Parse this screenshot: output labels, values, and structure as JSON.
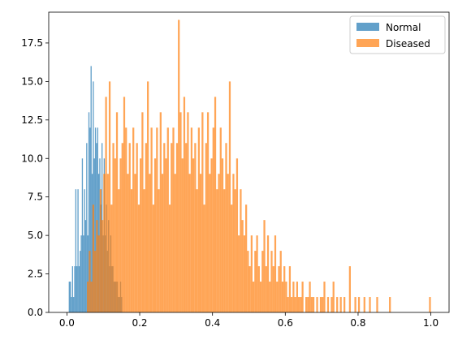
{
  "chart_data": {
    "type": "bar",
    "title": "",
    "xlabel": "",
    "ylabel": "",
    "xlim": [
      -0.05,
      1.05
    ],
    "ylim": [
      0,
      19.5
    ],
    "grid": false,
    "legend_placement": "top-right",
    "x_ticks": [
      0.0,
      0.2,
      0.4,
      0.6,
      0.8,
      1.0
    ],
    "x_tick_labels": [
      "0.0",
      "0.2",
      "0.4",
      "0.6",
      "0.8",
      "1.0"
    ],
    "y_ticks": [
      0.0,
      2.5,
      5.0,
      7.5,
      10.0,
      12.5,
      15.0,
      17.5
    ],
    "y_tick_labels": [
      "0.0",
      "2.5",
      "5.0",
      "7.5",
      "10.0",
      "12.5",
      "15.0",
      "17.5"
    ],
    "series": [
      {
        "name": "Normal",
        "color": "#1f77b4",
        "opacity": 0.7,
        "bins": [
          [
            0.005,
            0.008,
            2
          ],
          [
            0.008,
            0.011,
            2
          ],
          [
            0.011,
            0.014,
            1
          ],
          [
            0.014,
            0.017,
            3
          ],
          [
            0.017,
            0.02,
            1
          ],
          [
            0.02,
            0.023,
            3
          ],
          [
            0.023,
            0.026,
            8
          ],
          [
            0.026,
            0.029,
            3
          ],
          [
            0.029,
            0.032,
            8
          ],
          [
            0.032,
            0.035,
            3
          ],
          [
            0.035,
            0.038,
            4
          ],
          [
            0.038,
            0.041,
            5
          ],
          [
            0.041,
            0.044,
            10
          ],
          [
            0.044,
            0.047,
            5
          ],
          [
            0.047,
            0.05,
            8
          ],
          [
            0.05,
            0.053,
            6
          ],
          [
            0.053,
            0.056,
            11
          ],
          [
            0.056,
            0.059,
            5
          ],
          [
            0.059,
            0.062,
            13
          ],
          [
            0.062,
            0.065,
            12
          ],
          [
            0.065,
            0.068,
            16
          ],
          [
            0.068,
            0.071,
            9
          ],
          [
            0.071,
            0.074,
            15
          ],
          [
            0.074,
            0.077,
            10
          ],
          [
            0.077,
            0.08,
            12
          ],
          [
            0.08,
            0.083,
            11
          ],
          [
            0.083,
            0.086,
            12
          ],
          [
            0.086,
            0.089,
            9
          ],
          [
            0.089,
            0.092,
            10
          ],
          [
            0.092,
            0.095,
            7
          ],
          [
            0.095,
            0.098,
            11
          ],
          [
            0.098,
            0.101,
            5
          ],
          [
            0.101,
            0.104,
            10
          ],
          [
            0.104,
            0.107,
            5
          ],
          [
            0.107,
            0.11,
            7
          ],
          [
            0.11,
            0.113,
            4
          ],
          [
            0.113,
            0.116,
            6
          ],
          [
            0.116,
            0.119,
            3
          ],
          [
            0.119,
            0.122,
            5
          ],
          [
            0.122,
            0.125,
            3
          ],
          [
            0.125,
            0.128,
            3
          ],
          [
            0.128,
            0.131,
            2
          ],
          [
            0.131,
            0.134,
            2
          ],
          [
            0.134,
            0.137,
            2
          ],
          [
            0.137,
            0.14,
            2
          ],
          [
            0.14,
            0.143,
            1
          ],
          [
            0.143,
            0.146,
            1
          ],
          [
            0.146,
            0.149,
            2
          ],
          [
            0.149,
            0.152,
            1
          ]
        ]
      },
      {
        "name": "Diseased",
        "color": "#ff7f0e",
        "opacity": 0.7,
        "bins": [
          [
            0.055,
            0.06,
            2
          ],
          [
            0.06,
            0.065,
            4
          ],
          [
            0.065,
            0.07,
            2
          ],
          [
            0.07,
            0.075,
            7
          ],
          [
            0.075,
            0.08,
            4
          ],
          [
            0.08,
            0.085,
            6
          ],
          [
            0.085,
            0.09,
            5
          ],
          [
            0.09,
            0.095,
            8
          ],
          [
            0.095,
            0.1,
            6
          ],
          [
            0.1,
            0.105,
            9
          ],
          [
            0.105,
            0.11,
            14
          ],
          [
            0.11,
            0.115,
            9
          ],
          [
            0.115,
            0.12,
            15
          ],
          [
            0.12,
            0.125,
            7
          ],
          [
            0.125,
            0.13,
            11
          ],
          [
            0.13,
            0.135,
            10
          ],
          [
            0.135,
            0.14,
            13
          ],
          [
            0.14,
            0.145,
            8
          ],
          [
            0.145,
            0.15,
            10
          ],
          [
            0.15,
            0.155,
            11
          ],
          [
            0.155,
            0.16,
            14
          ],
          [
            0.16,
            0.165,
            12
          ],
          [
            0.165,
            0.17,
            9
          ],
          [
            0.17,
            0.175,
            11
          ],
          [
            0.175,
            0.18,
            8
          ],
          [
            0.18,
            0.185,
            12
          ],
          [
            0.185,
            0.19,
            9
          ],
          [
            0.19,
            0.195,
            11
          ],
          [
            0.195,
            0.2,
            7
          ],
          [
            0.2,
            0.205,
            10
          ],
          [
            0.205,
            0.21,
            13
          ],
          [
            0.21,
            0.215,
            8
          ],
          [
            0.215,
            0.22,
            11
          ],
          [
            0.22,
            0.225,
            15
          ],
          [
            0.225,
            0.23,
            9
          ],
          [
            0.23,
            0.235,
            12
          ],
          [
            0.235,
            0.24,
            7
          ],
          [
            0.24,
            0.245,
            10
          ],
          [
            0.245,
            0.25,
            12
          ],
          [
            0.25,
            0.255,
            8
          ],
          [
            0.255,
            0.26,
            13
          ],
          [
            0.26,
            0.265,
            9
          ],
          [
            0.265,
            0.27,
            11
          ],
          [
            0.27,
            0.275,
            10
          ],
          [
            0.275,
            0.28,
            12
          ],
          [
            0.28,
            0.285,
            7
          ],
          [
            0.285,
            0.29,
            11
          ],
          [
            0.29,
            0.295,
            12
          ],
          [
            0.295,
            0.3,
            9
          ],
          [
            0.3,
            0.305,
            11
          ],
          [
            0.305,
            0.31,
            19
          ],
          [
            0.31,
            0.315,
            13
          ],
          [
            0.315,
            0.32,
            10
          ],
          [
            0.32,
            0.325,
            14
          ],
          [
            0.325,
            0.33,
            11
          ],
          [
            0.33,
            0.335,
            13
          ],
          [
            0.335,
            0.34,
            9
          ],
          [
            0.34,
            0.345,
            12
          ],
          [
            0.345,
            0.35,
            10
          ],
          [
            0.35,
            0.355,
            11
          ],
          [
            0.355,
            0.36,
            8
          ],
          [
            0.36,
            0.365,
            12
          ],
          [
            0.365,
            0.37,
            9
          ],
          [
            0.37,
            0.375,
            13
          ],
          [
            0.375,
            0.38,
            7
          ],
          [
            0.38,
            0.385,
            11
          ],
          [
            0.385,
            0.39,
            13
          ],
          [
            0.39,
            0.395,
            9
          ],
          [
            0.395,
            0.4,
            10
          ],
          [
            0.4,
            0.405,
            12
          ],
          [
            0.405,
            0.41,
            14
          ],
          [
            0.41,
            0.415,
            8
          ],
          [
            0.415,
            0.42,
            9
          ],
          [
            0.42,
            0.425,
            12
          ],
          [
            0.425,
            0.43,
            10
          ],
          [
            0.43,
            0.435,
            8
          ],
          [
            0.435,
            0.44,
            11
          ],
          [
            0.44,
            0.445,
            9
          ],
          [
            0.445,
            0.45,
            15
          ],
          [
            0.45,
            0.455,
            7
          ],
          [
            0.455,
            0.46,
            9
          ],
          [
            0.46,
            0.465,
            8
          ],
          [
            0.465,
            0.47,
            10
          ],
          [
            0.47,
            0.475,
            5
          ],
          [
            0.475,
            0.48,
            8
          ],
          [
            0.48,
            0.485,
            6
          ],
          [
            0.485,
            0.49,
            5
          ],
          [
            0.49,
            0.495,
            7
          ],
          [
            0.495,
            0.5,
            4
          ],
          [
            0.5,
            0.505,
            3
          ],
          [
            0.505,
            0.51,
            5
          ],
          [
            0.51,
            0.515,
            2
          ],
          [
            0.515,
            0.52,
            4
          ],
          [
            0.52,
            0.525,
            5
          ],
          [
            0.525,
            0.53,
            3
          ],
          [
            0.53,
            0.535,
            2
          ],
          [
            0.535,
            0.54,
            4
          ],
          [
            0.54,
            0.545,
            6
          ],
          [
            0.545,
            0.55,
            3
          ],
          [
            0.55,
            0.555,
            5
          ],
          [
            0.555,
            0.56,
            2
          ],
          [
            0.56,
            0.565,
            4
          ],
          [
            0.565,
            0.57,
            3
          ],
          [
            0.57,
            0.575,
            5
          ],
          [
            0.575,
            0.58,
            2
          ],
          [
            0.58,
            0.585,
            3
          ],
          [
            0.585,
            0.59,
            4
          ],
          [
            0.59,
            0.595,
            2
          ],
          [
            0.595,
            0.6,
            3
          ],
          [
            0.6,
            0.605,
            2
          ],
          [
            0.605,
            0.61,
            1
          ],
          [
            0.61,
            0.615,
            3
          ],
          [
            0.615,
            0.62,
            1
          ],
          [
            0.62,
            0.625,
            2
          ],
          [
            0.625,
            0.63,
            1
          ],
          [
            0.63,
            0.635,
            2
          ],
          [
            0.635,
            0.64,
            1
          ],
          [
            0.64,
            0.645,
            1
          ],
          [
            0.645,
            0.65,
            2
          ],
          [
            0.655,
            0.66,
            1
          ],
          [
            0.66,
            0.665,
            1
          ],
          [
            0.665,
            0.67,
            2
          ],
          [
            0.67,
            0.675,
            1
          ],
          [
            0.675,
            0.68,
            1
          ],
          [
            0.685,
            0.69,
            1
          ],
          [
            0.695,
            0.7,
            1
          ],
          [
            0.7,
            0.705,
            1
          ],
          [
            0.705,
            0.71,
            2
          ],
          [
            0.715,
            0.72,
            1
          ],
          [
            0.725,
            0.73,
            1
          ],
          [
            0.73,
            0.735,
            2
          ],
          [
            0.74,
            0.745,
            1
          ],
          [
            0.75,
            0.755,
            1
          ],
          [
            0.76,
            0.765,
            1
          ],
          [
            0.775,
            0.78,
            3
          ],
          [
            0.79,
            0.795,
            1
          ],
          [
            0.8,
            0.805,
            1
          ],
          [
            0.815,
            0.82,
            1
          ],
          [
            0.83,
            0.835,
            1
          ],
          [
            0.85,
            0.855,
            1
          ],
          [
            0.885,
            0.89,
            1
          ],
          [
            0.995,
            1.0,
            1
          ]
        ]
      }
    ]
  }
}
